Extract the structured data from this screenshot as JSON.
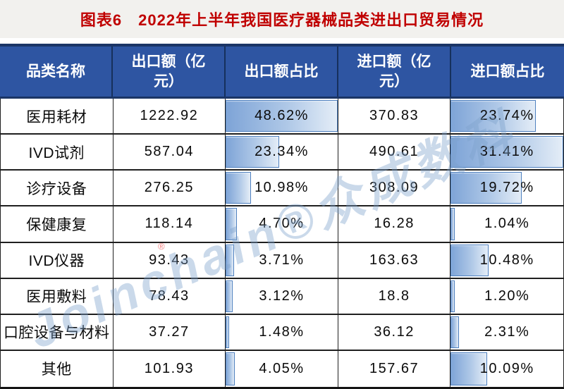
{
  "title": "图表6　2022年上半年我国医疗器械品类进出口贸易情况",
  "table": {
    "headers": [
      {
        "key": "category",
        "label": "品类名称"
      },
      {
        "key": "export_value",
        "label": "出口额（亿\n元）"
      },
      {
        "key": "export_share",
        "label": "出口额占比"
      },
      {
        "key": "import_value",
        "label": "进口额（亿\n元）"
      },
      {
        "key": "import_share",
        "label": "进口额占比"
      }
    ],
    "rows": [
      {
        "category": "医用耗材",
        "export_value": "1222.92",
        "export_share": "48.62%",
        "import_value": "370.83",
        "import_share": "23.74%"
      },
      {
        "category": "IVD试剂",
        "export_value": "587.04",
        "export_share": "23.34%",
        "import_value": "490.61",
        "import_share": "31.41%"
      },
      {
        "category": "诊疗设备",
        "export_value": "276.25",
        "export_share": "10.98%",
        "import_value": "308.09",
        "import_share": "19.72%"
      },
      {
        "category": "保健康复",
        "export_value": "118.14",
        "export_share": "4.70%",
        "import_value": "16.28",
        "import_share": "1.04%"
      },
      {
        "category": "IVD仪器",
        "export_value": "93.43",
        "export_share": "3.71%",
        "import_value": "163.63",
        "import_share": "10.48%"
      },
      {
        "category": "医用敷料",
        "export_value": "78.43",
        "export_share": "3.12%",
        "import_value": "18.8",
        "import_share": "1.20%"
      },
      {
        "category": "口腔设备与材料",
        "export_value": "37.27",
        "export_share": "1.48%",
        "import_value": "36.12",
        "import_share": "2.31%"
      },
      {
        "category": "其他",
        "export_value": "101.93",
        "export_share": "4.05%",
        "import_value": "157.67",
        "import_share": "10.09%"
      }
    ]
  },
  "watermark": {
    "text": "Joinchain®众成数科",
    "red_mark": "®"
  },
  "colors": {
    "title_red": "#c00000",
    "title_band_bg": "#f2f1ee",
    "header_bg": "#2e55a2",
    "header_border": "#1b3566",
    "grid_line": "#1f1f1f",
    "databar_border": "#4e80bf",
    "databar_gradient_start": "#7ea4d7",
    "databar_gradient_end": "#e4edf7",
    "watermark_blue": "#7da2cc"
  },
  "chart_data": {
    "type": "table",
    "title": "图表6　2022年上半年我国医疗器械品类进出口贸易情况",
    "columns": [
      "品类名称",
      "出口额（亿元）",
      "出口额占比",
      "进口额（亿元）",
      "进口额占比"
    ],
    "categories": [
      "医用耗材",
      "IVD试剂",
      "诊疗设备",
      "保健康复",
      "IVD仪器",
      "医用敷料",
      "口腔设备与材料",
      "其他"
    ],
    "series": [
      {
        "name": "出口额（亿元）",
        "values": [
          1222.92,
          587.04,
          276.25,
          118.14,
          93.43,
          78.43,
          37.27,
          101.93
        ]
      },
      {
        "name": "出口额占比",
        "unit": "%",
        "databar": true,
        "databar_max": 48.62,
        "values": [
          48.62,
          23.34,
          10.98,
          4.7,
          3.71,
          3.12,
          1.48,
          4.05
        ]
      },
      {
        "name": "进口额（亿元）",
        "values": [
          370.83,
          490.61,
          308.09,
          16.28,
          163.63,
          18.8,
          36.12,
          157.67
        ]
      },
      {
        "name": "进口额占比",
        "unit": "%",
        "databar": true,
        "databar_max": 31.41,
        "values": [
          23.74,
          31.41,
          19.72,
          1.04,
          10.48,
          1.2,
          2.31,
          10.09
        ]
      }
    ],
    "layout": {
      "databar_style": "excel-gradient-blue",
      "databar_scaling": "proportional-to-column-max"
    }
  }
}
